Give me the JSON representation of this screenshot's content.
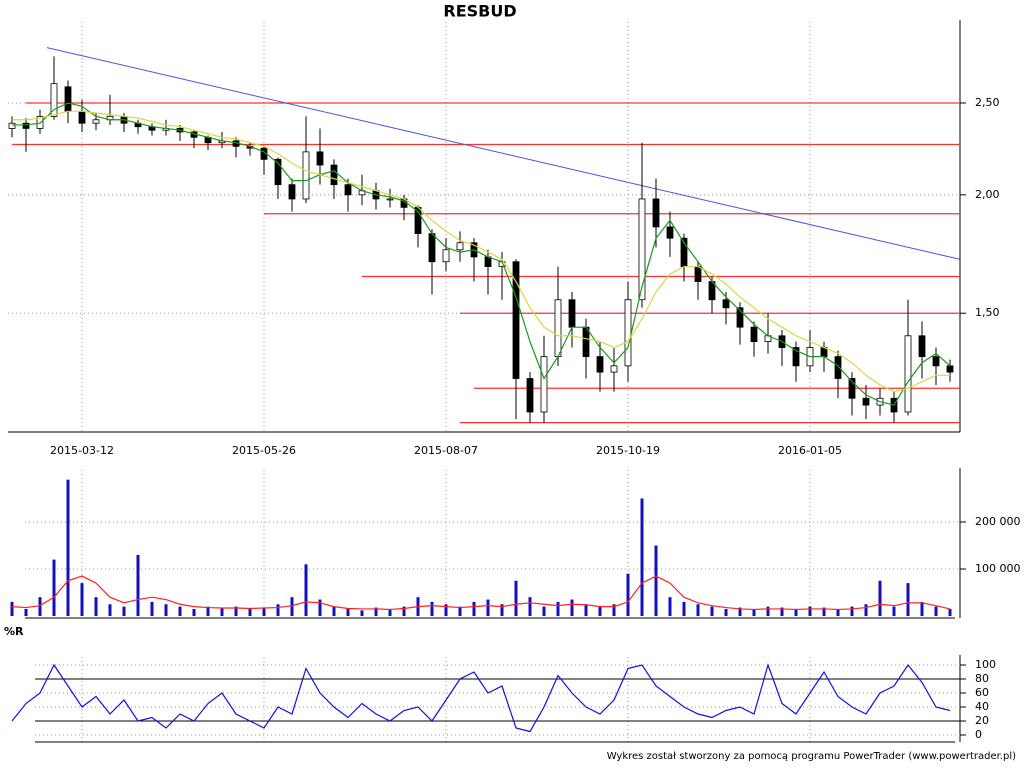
{
  "chart_data": [
    {
      "type": "candlestick",
      "title": "RESBUD",
      "log_scale": true,
      "grid": true,
      "categories": [
        null,
        null,
        null,
        null,
        null,
        "2015-03-12",
        null,
        null,
        null,
        null,
        null,
        null,
        null,
        null,
        null,
        null,
        null,
        null,
        "2015-05-26",
        null,
        null,
        null,
        null,
        null,
        null,
        null,
        null,
        null,
        null,
        null,
        null,
        "2015-08-07",
        null,
        null,
        null,
        null,
        null,
        null,
        null,
        null,
        null,
        null,
        null,
        null,
        "2015-10-19",
        null,
        null,
        null,
        null,
        null,
        null,
        null,
        null,
        null,
        null,
        null,
        null,
        "2016-01-05",
        null,
        null,
        null,
        null,
        null,
        null,
        null,
        null,
        null,
        null
      ],
      "open": [
        2.35,
        2.38,
        2.35,
        2.42,
        2.6,
        2.45,
        2.38,
        2.4,
        2.42,
        2.38,
        2.36,
        2.34,
        2.35,
        2.33,
        2.3,
        2.27,
        2.28,
        2.25,
        2.24,
        2.18,
        2.05,
        1.98,
        2.22,
        2.15,
        2.05,
        2.0,
        2.02,
        1.98,
        1.98,
        1.94,
        1.82,
        1.7,
        1.75,
        1.78,
        1.72,
        1.68,
        1.7,
        1.28,
        1.18,
        1.35,
        1.55,
        1.45,
        1.35,
        1.3,
        1.32,
        1.55,
        1.98,
        1.85,
        1.8,
        1.68,
        1.62,
        1.55,
        1.52,
        1.45,
        1.4,
        1.42,
        1.38,
        1.32,
        1.38,
        1.35,
        1.28,
        1.22,
        1.2,
        1.22,
        1.18,
        1.42,
        1.35,
        1.32
      ],
      "high": [
        2.42,
        2.41,
        2.46,
        2.8,
        2.64,
        2.52,
        2.44,
        2.55,
        2.44,
        2.4,
        2.38,
        2.4,
        2.37,
        2.34,
        2.31,
        2.33,
        2.3,
        2.27,
        2.25,
        2.19,
        2.08,
        2.42,
        2.35,
        2.18,
        2.08,
        2.1,
        2.06,
        2.03,
        2.0,
        1.95,
        1.84,
        1.8,
        1.83,
        1.8,
        1.75,
        1.74,
        1.71,
        1.3,
        1.42,
        1.68,
        1.58,
        1.48,
        1.4,
        1.38,
        1.62,
        2.27,
        2.08,
        1.92,
        1.82,
        1.7,
        1.64,
        1.58,
        1.54,
        1.47,
        1.5,
        1.44,
        1.4,
        1.44,
        1.4,
        1.37,
        1.3,
        1.26,
        1.25,
        1.24,
        1.55,
        1.47,
        1.38,
        1.34
      ],
      "low": [
        2.3,
        2.22,
        2.32,
        2.4,
        2.38,
        2.33,
        2.34,
        2.37,
        2.33,
        2.32,
        2.31,
        2.31,
        2.28,
        2.24,
        2.23,
        2.24,
        2.19,
        2.2,
        2.1,
        1.98,
        1.92,
        1.96,
        2.05,
        1.98,
        1.92,
        1.95,
        1.93,
        1.94,
        1.88,
        1.76,
        1.57,
        1.66,
        1.7,
        1.62,
        1.57,
        1.55,
        1.16,
        1.15,
        1.15,
        1.32,
        1.38,
        1.28,
        1.24,
        1.24,
        1.27,
        1.52,
        1.76,
        1.72,
        1.62,
        1.55,
        1.5,
        1.46,
        1.39,
        1.35,
        1.36,
        1.32,
        1.27,
        1.3,
        1.3,
        1.22,
        1.17,
        1.16,
        1.17,
        1.15,
        1.17,
        1.28,
        1.26,
        1.27
      ],
      "close": [
        2.38,
        2.35,
        2.42,
        2.62,
        2.45,
        2.38,
        2.4,
        2.42,
        2.38,
        2.36,
        2.34,
        2.35,
        2.33,
        2.3,
        2.27,
        2.28,
        2.25,
        2.24,
        2.18,
        2.05,
        1.98,
        2.22,
        2.15,
        2.05,
        2.0,
        2.02,
        1.98,
        1.98,
        1.94,
        1.82,
        1.7,
        1.75,
        1.78,
        1.72,
        1.68,
        1.7,
        1.28,
        1.18,
        1.35,
        1.55,
        1.45,
        1.35,
        1.3,
        1.32,
        1.55,
        1.98,
        1.85,
        1.8,
        1.68,
        1.62,
        1.55,
        1.52,
        1.45,
        1.4,
        1.42,
        1.38,
        1.32,
        1.38,
        1.35,
        1.28,
        1.22,
        1.2,
        1.22,
        1.18,
        1.42,
        1.35,
        1.32,
        1.3
      ],
      "series": [
        {
          "color": "#1a9a1a",
          "values": [
            2.37,
            2.37,
            2.38,
            2.46,
            2.5,
            2.48,
            2.42,
            2.4,
            2.4,
            2.38,
            2.36,
            2.35,
            2.34,
            2.32,
            2.3,
            2.28,
            2.27,
            2.25,
            2.22,
            2.16,
            2.07,
            2.07,
            2.1,
            2.12,
            2.06,
            2.02,
            2.0,
            1.99,
            1.97,
            1.92,
            1.82,
            1.76,
            1.74,
            1.75,
            1.72,
            1.7,
            1.56,
            1.4,
            1.28,
            1.35,
            1.45,
            1.45,
            1.38,
            1.33,
            1.38,
            1.6,
            1.8,
            1.88,
            1.78,
            1.7,
            1.62,
            1.56,
            1.51,
            1.46,
            1.42,
            1.4,
            1.37,
            1.35,
            1.35,
            1.32,
            1.27,
            1.23,
            1.21,
            1.2,
            1.27,
            1.33,
            1.36,
            1.32
          ]
        },
        {
          "color": "#d8d840",
          "values": [
            2.4,
            2.4,
            2.41,
            2.43,
            2.45,
            2.45,
            2.44,
            2.43,
            2.42,
            2.41,
            2.39,
            2.37,
            2.36,
            2.34,
            2.32,
            2.3,
            2.29,
            2.27,
            2.25,
            2.21,
            2.16,
            2.12,
            2.1,
            2.08,
            2.06,
            2.04,
            2.02,
            2.0,
            1.98,
            1.94,
            1.88,
            1.83,
            1.79,
            1.77,
            1.74,
            1.71,
            1.62,
            1.52,
            1.45,
            1.42,
            1.42,
            1.41,
            1.4,
            1.38,
            1.4,
            1.48,
            1.58,
            1.65,
            1.68,
            1.68,
            1.65,
            1.61,
            1.56,
            1.52,
            1.48,
            1.45,
            1.42,
            1.4,
            1.38,
            1.36,
            1.33,
            1.29,
            1.26,
            1.24,
            1.25,
            1.27,
            1.29,
            1.29
          ]
        }
      ],
      "levels": [
        {
          "value": 2.5,
          "start": 1
        },
        {
          "value": 2.26,
          "start": 0
        },
        {
          "value": 1.91,
          "start": 18
        },
        {
          "value": 1.64,
          "start": 25
        },
        {
          "value": 1.5,
          "start": 32
        },
        {
          "value": 1.25,
          "start": 33
        },
        {
          "value": 1.15,
          "start": 32
        }
      ],
      "level_color": "#ff3030",
      "trendline": {
        "x": [
          2.5,
          67.7
        ],
        "y": [
          2.86,
          1.71
        ],
        "color": "#5050e0"
      },
      "ylim": [
        1.124,
        2.985
      ],
      "yticks": [
        {
          "value": 1.5,
          "label": "1,50"
        },
        {
          "value": 2.0,
          "label": "2,00"
        },
        {
          "value": 2.5,
          "label": "2,50"
        }
      ]
    },
    {
      "type": "bar",
      "color": "#1010c0",
      "values": [
        30000,
        15000,
        40000,
        120000,
        290000,
        70000,
        40000,
        25000,
        20000,
        130000,
        30000,
        25000,
        20000,
        15000,
        20000,
        18000,
        20000,
        15000,
        18000,
        25000,
        40000,
        110000,
        35000,
        20000,
        15000,
        12000,
        18000,
        15000,
        20000,
        40000,
        30000,
        25000,
        20000,
        30000,
        35000,
        25000,
        75000,
        40000,
        20000,
        30000,
        35000,
        25000,
        20000,
        25000,
        90000,
        250000,
        150000,
        40000,
        30000,
        25000,
        20000,
        15000,
        18000,
        15000,
        20000,
        18000,
        15000,
        20000,
        18000,
        15000,
        20000,
        25000,
        75000,
        20000,
        70000,
        30000,
        20000,
        15000
      ],
      "series": [
        {
          "color": "#ff2020",
          "values": [
            20000,
            18000,
            22000,
            40000,
            75000,
            85000,
            70000,
            40000,
            28000,
            35000,
            40000,
            35000,
            25000,
            20000,
            18000,
            17000,
            17000,
            16000,
            17000,
            18000,
            22000,
            30000,
            28000,
            20000,
            16000,
            15000,
            15000,
            14000,
            16000,
            20000,
            22000,
            20000,
            18000,
            20000,
            22000,
            20000,
            25000,
            28000,
            25000,
            22000,
            25000,
            24000,
            20000,
            20000,
            30000,
            70000,
            85000,
            70000,
            40000,
            28000,
            22000,
            18000,
            15000,
            14000,
            15000,
            15000,
            14000,
            15000,
            15000,
            14000,
            15000,
            18000,
            25000,
            22000,
            28000,
            28000,
            22000,
            15000
          ]
        }
      ],
      "ylim": [
        0,
        293600
      ],
      "yticks": [
        {
          "value": 100000,
          "label": "100 000"
        },
        {
          "value": 200000,
          "label": "200 000"
        }
      ]
    },
    {
      "type": "line",
      "title": "%R",
      "color": "#1010e0",
      "values": [
        20,
        45,
        60,
        100,
        70,
        40,
        55,
        30,
        50,
        20,
        25,
        10,
        30,
        20,
        45,
        60,
        30,
        20,
        10,
        40,
        30,
        95,
        60,
        40,
        25,
        45,
        30,
        20,
        35,
        40,
        20,
        50,
        80,
        90,
        60,
        70,
        10,
        5,
        40,
        85,
        60,
        40,
        30,
        50,
        95,
        100,
        70,
        55,
        40,
        30,
        25,
        35,
        40,
        30,
        100,
        45,
        30,
        60,
        90,
        55,
        40,
        30,
        60,
        70,
        100,
        75,
        40,
        35
      ],
      "levels": [
        20,
        80
      ],
      "ylim": [
        0,
        100
      ],
      "yticks": [
        0,
        20,
        40,
        60,
        80,
        100
      ]
    }
  ],
  "footer": "Wykres został stworzony za pomocą programu PowerTrader (www.powertrader.pl)"
}
